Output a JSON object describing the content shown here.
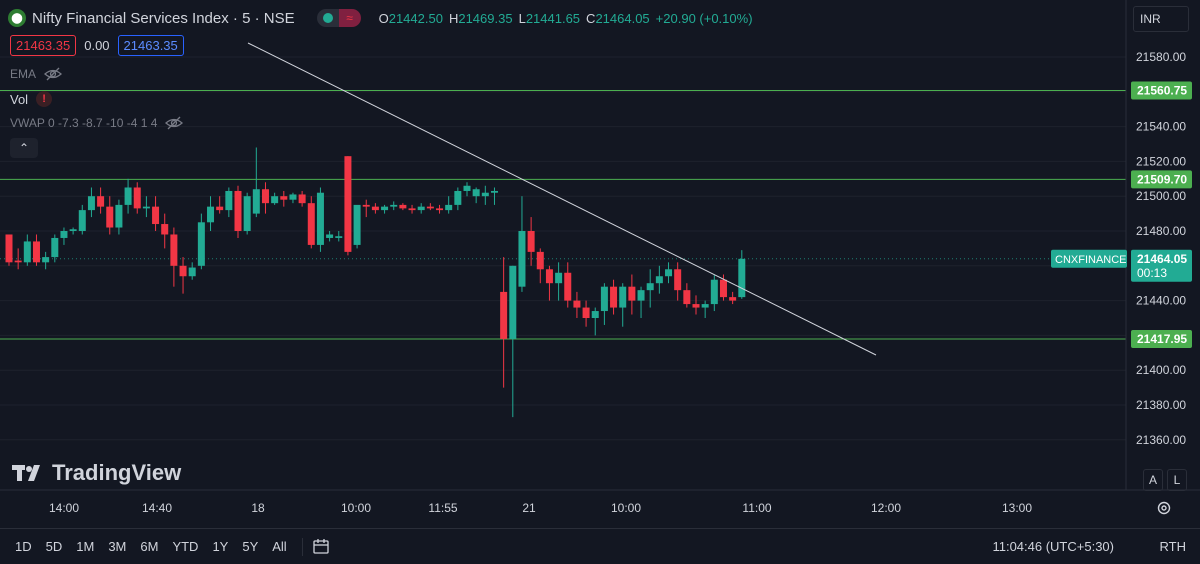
{
  "header": {
    "symbol_icon": "candle-logo-icon",
    "title": "Nifty Financial Services Index · 5 · NSE",
    "ohlc": [
      {
        "k": "O",
        "v": "21442.50"
      },
      {
        "k": "H",
        "v": "21469.35"
      },
      {
        "k": "L",
        "v": "21441.65"
      },
      {
        "k": "C",
        "v": "21464.05"
      },
      {
        "k": "",
        "v": "+20.90 (+0.10%)"
      }
    ],
    "sell_price": "21463.35",
    "spread": "0.00",
    "buy_price": "21463.35",
    "currency": "INR"
  },
  "indicators": {
    "ema_label": "EMA",
    "vol_label": "Vol",
    "vwap_label": "VWAP 0 -7.3 -8.7 -10 -4 1 4"
  },
  "price_axis": {
    "ticks": [
      "21580.00",
      "21560.00",
      "21540.00",
      "21520.00",
      "21500.00",
      "21480.00",
      "21460.00",
      "21440.00",
      "21420.00",
      "21400.00",
      "21380.00",
      "21360.00"
    ],
    "tick_values": [
      21580,
      21560,
      21540,
      21520,
      21500,
      21480,
      21460,
      21440,
      21420,
      21400,
      21380,
      21360
    ],
    "hlines": [
      {
        "value": 21560.75,
        "label": "21560.75"
      },
      {
        "value": 21509.7,
        "label": "21509.70"
      },
      {
        "value": 21417.95,
        "label": "21417.95"
      }
    ],
    "last": {
      "name": "CNXFINANCE",
      "price": "21464.05",
      "countdown": "00:13",
      "value": 21464.05
    }
  },
  "time_axis": {
    "labels": [
      "14:00",
      "14:40",
      "18",
      "10:00",
      "11:55",
      "21",
      "10:00",
      "11:00",
      "12:00",
      "13:00"
    ]
  },
  "trendline": {
    "from": {
      "bar": 25,
      "price": 21588
    },
    "to": {
      "bar": 87,
      "price": 21413
    }
  },
  "colors": {
    "bg": "#131722",
    "up": "#22ab94",
    "down": "#f23645",
    "hline": "#4caf50",
    "grid": "#1e222d",
    "text": "#d1d4dc",
    "muted": "#787b86"
  },
  "chart_data": {
    "type": "candlestick",
    "ylim": [
      21350,
      21590
    ],
    "bars": [
      [
        21478,
        21478,
        21460,
        21462
      ],
      [
        21463,
        21470,
        21458,
        21462
      ],
      [
        21462,
        21478,
        21460,
        21474
      ],
      [
        21474,
        21478,
        21460,
        21462
      ],
      [
        21462,
        21468,
        21458,
        21465
      ],
      [
        21465,
        21478,
        21462,
        21476
      ],
      [
        21476,
        21482,
        21472,
        21480
      ],
      [
        21480,
        21482,
        21478,
        21481
      ],
      [
        21480,
        21495,
        21478,
        21492
      ],
      [
        21492,
        21505,
        21488,
        21500
      ],
      [
        21500,
        21505,
        21490,
        21494
      ],
      [
        21494,
        21500,
        21478,
        21482
      ],
      [
        21482,
        21498,
        21478,
        21495
      ],
      [
        21495,
        21510,
        21490,
        21505
      ],
      [
        21505,
        21508,
        21490,
        21493
      ],
      [
        21493,
        21500,
        21488,
        21494
      ],
      [
        21494,
        21500,
        21480,
        21484
      ],
      [
        21484,
        21490,
        21470,
        21478
      ],
      [
        21478,
        21482,
        21448,
        21460
      ],
      [
        21460,
        21465,
        21444,
        21454
      ],
      [
        21454,
        21462,
        21452,
        21459
      ],
      [
        21460,
        21490,
        21458,
        21485
      ],
      [
        21485,
        21500,
        21480,
        21494
      ],
      [
        21494,
        21500,
        21490,
        21492
      ],
      [
        21492,
        21505,
        21488,
        21503
      ],
      [
        21503,
        21506,
        21476,
        21480
      ],
      [
        21480,
        21502,
        21478,
        21500
      ],
      [
        21490,
        21528,
        21488,
        21504
      ],
      [
        21504,
        21508,
        21490,
        21496
      ],
      [
        21496,
        21502,
        21495,
        21500
      ],
      [
        21500,
        21503,
        21494,
        21498
      ],
      [
        21498,
        21502,
        21496,
        21501
      ],
      [
        21501,
        21503,
        21494,
        21496
      ],
      [
        21496,
        21500,
        21470,
        21472
      ],
      [
        21472,
        21505,
        21468,
        21502
      ],
      [
        21476,
        21480,
        21474,
        21478
      ],
      [
        21476,
        21480,
        21474,
        21477
      ],
      [
        21523,
        21523,
        21466,
        21468
      ],
      [
        21472,
        21488,
        21470,
        21495
      ],
      [
        21495,
        21498,
        21488,
        21494
      ],
      [
        21494,
        21496,
        21490,
        21492
      ],
      [
        21492,
        21495,
        21490,
        21494
      ],
      [
        21494,
        21497,
        21492,
        21495
      ],
      [
        21495,
        21496,
        21492,
        21493
      ],
      [
        21493,
        21495,
        21490,
        21492
      ],
      [
        21492,
        21496,
        21490,
        21494
      ],
      [
        21494,
        21496,
        21492,
        21493
      ],
      [
        21493,
        21495,
        21490,
        21492
      ],
      [
        21492,
        21500,
        21490,
        21495
      ],
      [
        21495,
        21505,
        21492,
        21503
      ],
      [
        21503,
        21508,
        21500,
        21506
      ],
      [
        21500,
        21505,
        21496,
        21504
      ],
      [
        21500,
        21506,
        21495,
        21502
      ],
      [
        21502,
        21505,
        21495,
        21503
      ],
      [
        21445,
        21465,
        21390,
        21418
      ],
      [
        21418,
        21460,
        21373,
        21460
      ],
      [
        21448,
        21500,
        21445,
        21480
      ],
      [
        21480,
        21488,
        21460,
        21468
      ],
      [
        21468,
        21470,
        21450,
        21458
      ],
      [
        21458,
        21460,
        21440,
        21450
      ],
      [
        21450,
        21462,
        21440,
        21456
      ],
      [
        21456,
        21462,
        21436,
        21440
      ],
      [
        21440,
        21445,
        21430,
        21436
      ],
      [
        21436,
        21440,
        21425,
        21430
      ],
      [
        21430,
        21436,
        21420,
        21434
      ],
      [
        21434,
        21450,
        21426,
        21448
      ],
      [
        21448,
        21452,
        21432,
        21436
      ],
      [
        21436,
        21450,
        21425,
        21448
      ],
      [
        21448,
        21455,
        21432,
        21440
      ],
      [
        21440,
        21448,
        21430,
        21446
      ],
      [
        21446,
        21458,
        21436,
        21450
      ],
      [
        21450,
        21460,
        21444,
        21454
      ],
      [
        21454,
        21462,
        21450,
        21458
      ],
      [
        21458,
        21462,
        21440,
        21446
      ],
      [
        21446,
        21450,
        21436,
        21438
      ],
      [
        21438,
        21443,
        21432,
        21436
      ],
      [
        21436,
        21440,
        21430,
        21438
      ],
      [
        21438,
        21455,
        21434,
        21452
      ],
      [
        21452,
        21455,
        21440,
        21442
      ],
      [
        21442,
        21445,
        21438,
        21440
      ],
      [
        21442,
        21469,
        21441,
        21464
      ]
    ]
  }
}
